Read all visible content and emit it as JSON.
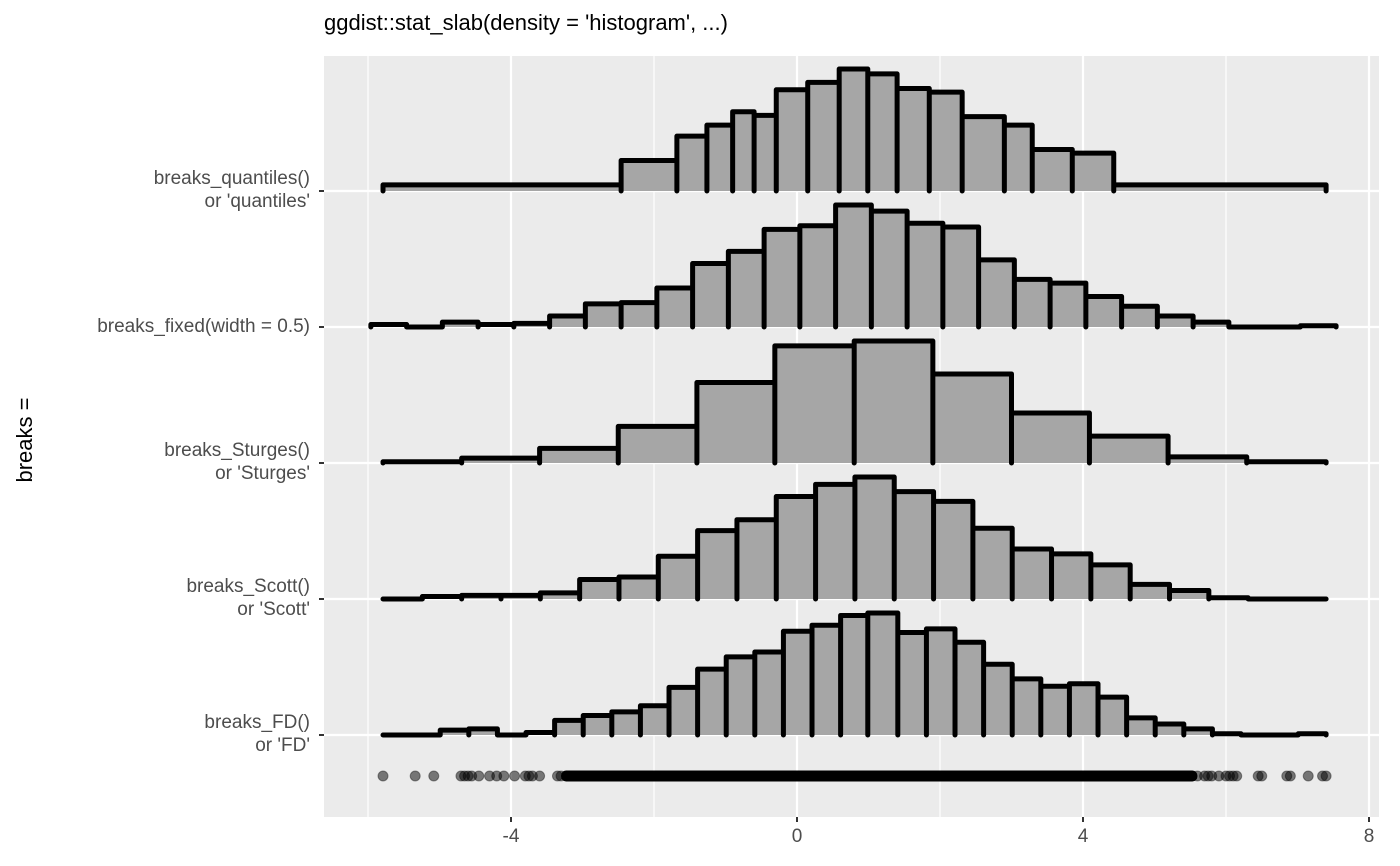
{
  "chart_data": {
    "type": "bar",
    "subtype": "histogram-slabs",
    "title": "ggdist::stat_slab(density = 'histogram', ...)",
    "xlabel": "",
    "ylabel": "breaks =",
    "xlim": [
      -6.7,
      8.05
    ],
    "x_ticks": [
      -4,
      0,
      4,
      8
    ],
    "x_tick_labels": [
      "-4",
      "0",
      "4",
      "8"
    ],
    "grid": true,
    "legend": "none",
    "fill": "#a6a6a6",
    "outline": "#000000",
    "panel_bg": "#ebebeb",
    "series": [
      {
        "name": "breaks_quantiles()",
        "label_line1": "breaks_quantiles()",
        "label_line2": "or 'quantiles'",
        "edges": [
          -5.79,
          -2.46,
          -1.68,
          -1.26,
          -0.9,
          -0.6,
          -0.29,
          0.15,
          0.59,
          0.99,
          1.4,
          1.85,
          2.31,
          2.9,
          3.29,
          3.85,
          4.43,
          7.4
        ],
        "heights": [
          0.05,
          0.25,
          0.45,
          0.54,
          0.65,
          0.62,
          0.83,
          0.89,
          1.0,
          0.96,
          0.84,
          0.81,
          0.61,
          0.54,
          0.34,
          0.31,
          0.05
        ]
      },
      {
        "name": "breaks_fixed(width = 0.5)",
        "label_line1": "breaks_fixed(width = 0.5)",
        "label_line2": "",
        "edges": [
          -5.96,
          -5.46,
          -4.96,
          -4.46,
          -3.96,
          -3.46,
          -2.96,
          -2.46,
          -1.96,
          -1.46,
          -0.96,
          -0.46,
          0.04,
          0.54,
          1.04,
          1.54,
          2.04,
          2.54,
          3.04,
          3.54,
          4.04,
          4.54,
          5.04,
          5.54,
          6.04,
          6.54,
          7.04,
          7.54
        ],
        "heights": [
          0.02,
          0.0,
          0.04,
          0.02,
          0.03,
          0.09,
          0.19,
          0.2,
          0.32,
          0.52,
          0.62,
          0.8,
          0.83,
          1.0,
          0.95,
          0.85,
          0.82,
          0.55,
          0.39,
          0.36,
          0.25,
          0.17,
          0.09,
          0.04,
          0.0,
          0.0,
          0.01
        ]
      },
      {
        "name": "breaks_Sturges()",
        "label_line1": "breaks_Sturges()",
        "label_line2": "or 'Sturges'",
        "edges": [
          -5.79,
          -4.69,
          -3.6,
          -2.5,
          -1.4,
          -0.31,
          0.8,
          1.9,
          3.0,
          4.09,
          5.19,
          6.29,
          7.4
        ],
        "heights": [
          0.01,
          0.04,
          0.12,
          0.3,
          0.66,
          0.96,
          1.0,
          0.73,
          0.41,
          0.22,
          0.05,
          0.01
        ]
      },
      {
        "name": "breaks_Scott()",
        "label_line1": "breaks_Scott()",
        "label_line2": "or 'Scott'",
        "edges": [
          -5.79,
          -5.24,
          -4.69,
          -4.14,
          -3.59,
          -3.04,
          -2.49,
          -1.94,
          -1.39,
          -0.84,
          -0.29,
          0.26,
          0.81,
          1.36,
          1.91,
          2.46,
          3.01,
          3.56,
          4.11,
          4.66,
          5.21,
          5.76,
          6.31,
          6.86,
          7.4
        ],
        "heights": [
          0.0,
          0.02,
          0.03,
          0.03,
          0.05,
          0.16,
          0.18,
          0.35,
          0.56,
          0.65,
          0.84,
          0.94,
          1.0,
          0.88,
          0.8,
          0.58,
          0.41,
          0.37,
          0.28,
          0.12,
          0.07,
          0.01,
          0.0,
          0.0
        ]
      },
      {
        "name": "breaks_FD()",
        "label_line1": "breaks_FD()",
        "label_line2": "or 'FD'",
        "edges": [
          -5.79,
          -5.39,
          -4.99,
          -4.59,
          -4.19,
          -3.79,
          -3.39,
          -2.99,
          -2.59,
          -2.19,
          -1.79,
          -1.39,
          -0.99,
          -0.59,
          -0.19,
          0.21,
          0.61,
          0.99,
          1.41,
          1.81,
          2.21,
          2.61,
          3.01,
          3.41,
          3.81,
          4.21,
          4.61,
          5.01,
          5.41,
          5.81,
          6.21,
          6.61,
          7.01,
          7.4
        ],
        "heights": [
          0.0,
          0.0,
          0.04,
          0.05,
          0.0,
          0.02,
          0.12,
          0.16,
          0.19,
          0.24,
          0.39,
          0.54,
          0.64,
          0.68,
          0.85,
          0.9,
          0.98,
          1.0,
          0.84,
          0.87,
          0.76,
          0.58,
          0.46,
          0.4,
          0.42,
          0.31,
          0.14,
          0.09,
          0.05,
          0.01,
          0.0,
          0.0,
          0.01
        ]
      }
    ],
    "rug_points": [
      -5.79,
      -5.34,
      -5.08,
      -4.7,
      -4.65,
      -4.6,
      -4.55,
      -4.45,
      -4.3,
      -4.2,
      -4.1,
      -3.95,
      -3.8,
      -3.75,
      -3.7,
      -3.6,
      -3.35,
      -3.3,
      5.6,
      5.7,
      5.75,
      5.8,
      5.9,
      6.0,
      6.05,
      6.1,
      6.15,
      6.45,
      6.5,
      6.85,
      6.9,
      7.15,
      7.35,
      7.4
    ],
    "rug_dense_range": [
      -3.3,
      5.6
    ]
  }
}
